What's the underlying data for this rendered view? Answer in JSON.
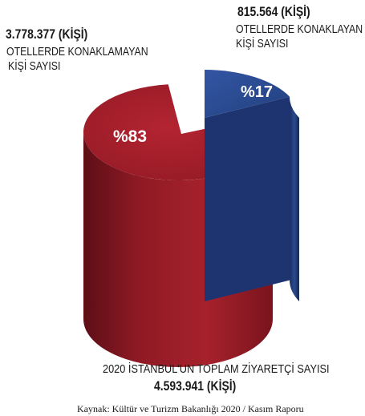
{
  "chart_data": {
    "type": "pie",
    "slices": [
      {
        "value": 3778377,
        "value_label": "3.778.377 (KİŞİ)",
        "description": [
          "OTELLERDE KONAKLAMAYAN",
          "KİŞİ SAYISI"
        ],
        "percent_label": "%83",
        "color": "#a8202b"
      },
      {
        "value": 815564,
        "value_label": "815.564 (KİŞİ)",
        "description": [
          "OTELLERDE KONAKLAYAN",
          "KİŞİ SAYISI"
        ],
        "percent_label": "%17",
        "color": "#2a4c93"
      }
    ],
    "total": {
      "caption": "2020 İSTANBUL'UN TOPLAM ZİYARETÇİ SAYISI",
      "value_label": "4.593.941 (KİŞİ)"
    },
    "source": "Kaynak: Kültür ve Turizm Bakanlığı 2020 / Kasım Raporu"
  }
}
